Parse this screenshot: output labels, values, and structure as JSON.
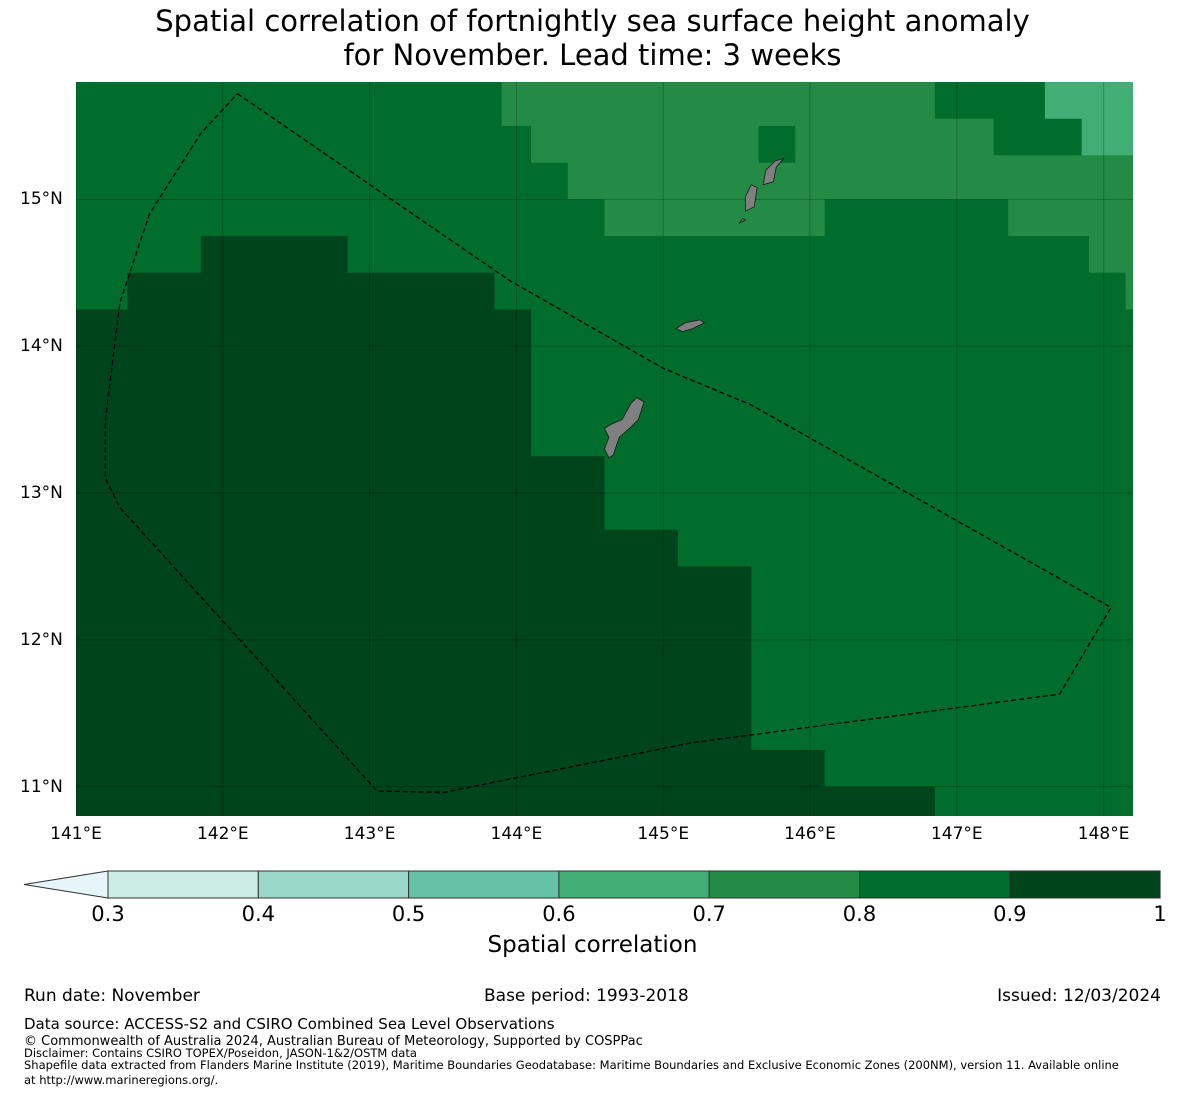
{
  "title_line1": "Spatial correlation of fortnightly sea surface height anomaly",
  "title_line2": "for November. Lead time: 3 weeks",
  "map": {
    "lon_range": [
      141.0,
      148.2
    ],
    "lat_range": [
      10.8,
      15.8
    ],
    "x_ticks": [
      "141°E",
      "142°E",
      "143°E",
      "144°E",
      "145°E",
      "146°E",
      "147°E",
      "148°E"
    ],
    "y_ticks": [
      "15°N",
      "14°N",
      "13°N",
      "12°N",
      "11°N"
    ],
    "background_correlation_band": "0.8-0.9",
    "regions": [
      {
        "band": "0.7-0.8",
        "lon_lat": [
          [
            143.9,
            15.8
          ],
          [
            146.85,
            15.8
          ],
          [
            146.85,
            15.55
          ],
          [
            147.25,
            15.55
          ],
          [
            147.25,
            15.3
          ],
          [
            148.2,
            15.3
          ],
          [
            148.2,
            14.25
          ],
          [
            148.15,
            14.25
          ],
          [
            148.15,
            14.5
          ],
          [
            147.9,
            14.5
          ],
          [
            147.9,
            14.75
          ],
          [
            147.35,
            14.75
          ],
          [
            147.35,
            15.0
          ],
          [
            146.3,
            15.0
          ],
          [
            146.3,
            15.25
          ],
          [
            145.9,
            15.25
          ],
          [
            145.9,
            15.5
          ],
          [
            145.65,
            15.5
          ],
          [
            145.65,
            15.25
          ],
          [
            146.3,
            15.25
          ],
          [
            146.3,
            15.0
          ],
          [
            146.1,
            15.0
          ],
          [
            146.1,
            14.75
          ],
          [
            144.6,
            14.75
          ],
          [
            144.6,
            15.0
          ],
          [
            144.35,
            15.0
          ],
          [
            144.35,
            15.25
          ],
          [
            144.1,
            15.25
          ],
          [
            144.1,
            15.5
          ],
          [
            143.9,
            15.5
          ]
        ]
      },
      {
        "band": "0.6-0.7",
        "lon_lat": [
          [
            147.6,
            15.8
          ],
          [
            148.2,
            15.8
          ],
          [
            148.2,
            15.3
          ],
          [
            147.85,
            15.3
          ],
          [
            147.85,
            15.55
          ],
          [
            147.6,
            15.55
          ]
        ]
      },
      {
        "band": "0.9-1",
        "lon_lat": [
          [
            141.0,
            14.25
          ],
          [
            141.35,
            14.25
          ],
          [
            141.35,
            14.5
          ],
          [
            141.85,
            14.5
          ],
          [
            141.85,
            14.75
          ],
          [
            142.85,
            14.75
          ],
          [
            142.85,
            14.5
          ],
          [
            143.85,
            14.5
          ],
          [
            143.85,
            14.25
          ],
          [
            144.1,
            14.25
          ],
          [
            144.1,
            13.25
          ],
          [
            144.6,
            13.25
          ],
          [
            144.6,
            12.75
          ],
          [
            145.1,
            12.75
          ],
          [
            145.1,
            12.5
          ],
          [
            145.6,
            12.5
          ],
          [
            145.6,
            11.25
          ],
          [
            146.1,
            11.25
          ],
          [
            146.1,
            11.0
          ],
          [
            146.85,
            11.0
          ],
          [
            146.85,
            10.8
          ],
          [
            141.0,
            10.8
          ]
        ]
      }
    ],
    "islands": [
      {
        "name": "Guam",
        "lon_lat": [
          [
            144.63,
            13.24
          ],
          [
            144.66,
            13.26
          ],
          [
            144.7,
            13.38
          ],
          [
            144.78,
            13.45
          ],
          [
            144.83,
            13.5
          ],
          [
            144.87,
            13.62
          ],
          [
            144.82,
            13.65
          ],
          [
            144.78,
            13.61
          ],
          [
            144.72,
            13.5
          ],
          [
            144.65,
            13.47
          ],
          [
            144.6,
            13.44
          ],
          [
            144.63,
            13.38
          ],
          [
            144.6,
            13.3
          ]
        ]
      },
      {
        "name": "Rota",
        "lon_lat": [
          [
            145.09,
            14.12
          ],
          [
            145.15,
            14.16
          ],
          [
            145.25,
            14.18
          ],
          [
            145.28,
            14.16
          ],
          [
            145.2,
            14.12
          ],
          [
            145.13,
            14.1
          ]
        ]
      },
      {
        "name": "Tinian",
        "lon_lat": [
          [
            145.56,
            14.92
          ],
          [
            145.62,
            14.95
          ],
          [
            145.64,
            15.08
          ],
          [
            145.6,
            15.1
          ],
          [
            145.56,
            15.02
          ]
        ]
      },
      {
        "name": "Saipan",
        "lon_lat": [
          [
            145.68,
            15.1
          ],
          [
            145.75,
            15.12
          ],
          [
            145.77,
            15.22
          ],
          [
            145.82,
            15.28
          ],
          [
            145.76,
            15.26
          ],
          [
            145.7,
            15.2
          ]
        ]
      },
      {
        "name": "Aguijan",
        "lon_lat": [
          [
            145.52,
            14.84
          ],
          [
            145.56,
            14.86
          ],
          [
            145.54,
            14.87
          ]
        ]
      }
    ],
    "eez_boundary": [
      [
        142.1,
        15.72
      ],
      [
        143.95,
        14.45
      ],
      [
        145.0,
        13.85
      ],
      [
        145.6,
        13.6
      ],
      [
        148.05,
        12.22
      ],
      [
        147.7,
        11.63
      ],
      [
        145.2,
        11.3
      ],
      [
        143.5,
        10.96
      ],
      [
        143.05,
        10.97
      ],
      [
        141.3,
        12.9
      ],
      [
        141.2,
        13.1
      ],
      [
        141.2,
        13.5
      ],
      [
        141.3,
        14.3
      ],
      [
        141.5,
        14.9
      ],
      [
        141.85,
        15.45
      ],
      [
        142.1,
        15.72
      ]
    ]
  },
  "colorbar": {
    "label": "Spatial correlation",
    "ticks": [
      "0.3",
      "0.4",
      "0.5",
      "0.6",
      "0.7",
      "0.8",
      "0.9",
      "1"
    ],
    "extend_color": "#e5f5f9",
    "colors": [
      "#ccece6",
      "#99d8c9",
      "#66c2a4",
      "#41ae76",
      "#238b45",
      "#006d2c",
      "#00441b"
    ]
  },
  "band_colors": {
    "0.6-0.7": "#41ae76",
    "0.7-0.8": "#238b45",
    "0.8-0.9": "#006d2c",
    "0.9-1": "#00441b"
  },
  "land_color": "#808080",
  "run_date": "Run date: November",
  "base_period": "Base period: 1993-2018",
  "issued": "Issued: 12/03/2024",
  "footer": {
    "data_source": "Data source: ACCESS-S2 and CSIRO Combined Sea Level Observations",
    "copyright": "© Commonwealth of Australia 2024, Australian Bureau of Meteorology, Supported by COSPPac",
    "disclaimer": "Disclaimer: Contains CSIRO TOPEX/Poseidon, JASON-1&2/OSTM data",
    "shapefile_line1": "Shapefile data extracted from Flanders Marine Institute (2019), Maritime Boundaries Geodatabase: Maritime Boundaries and Exclusive Economic Zones (200NM), version 11. Available online",
    "shapefile_line2": "at http://www.marineregions.org/."
  }
}
